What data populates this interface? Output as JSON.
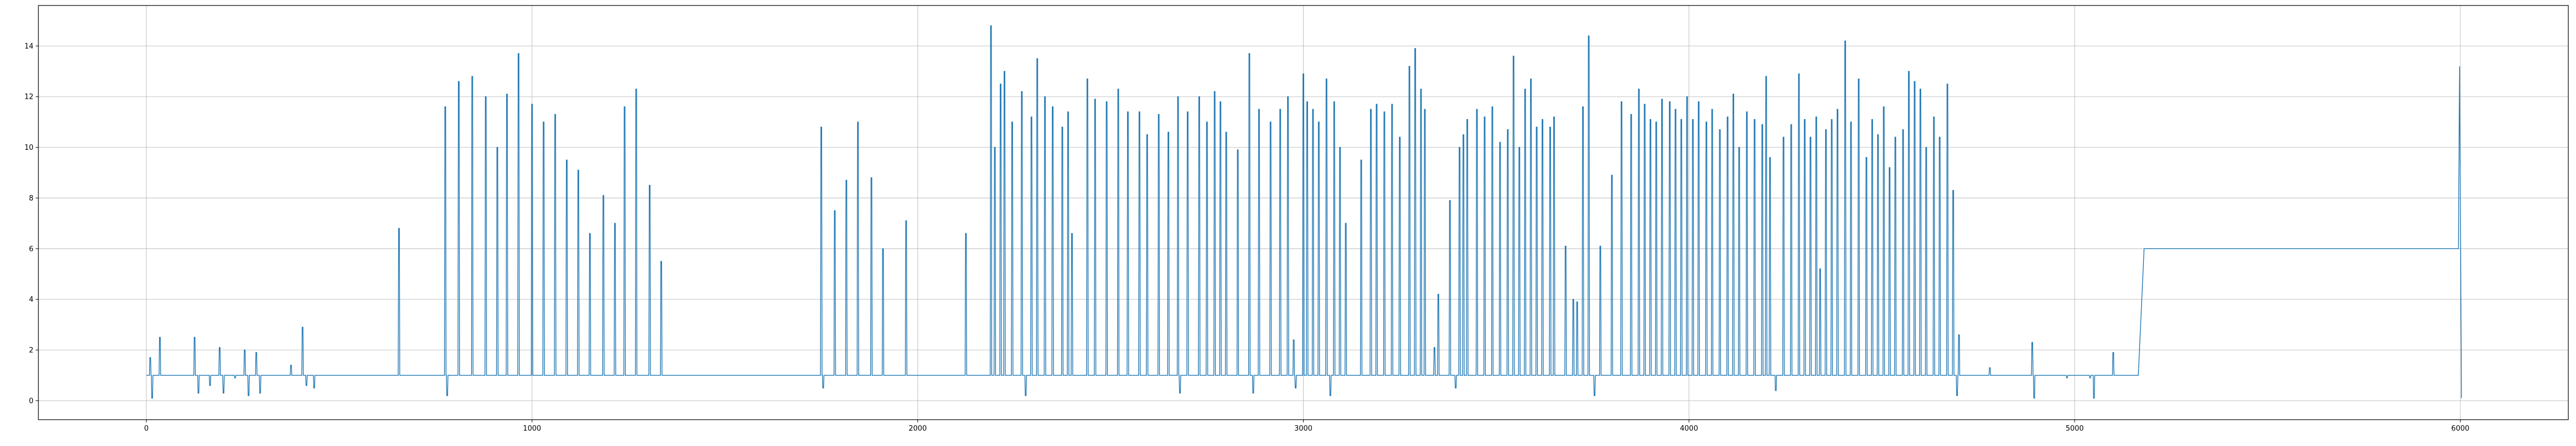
{
  "chart_data": {
    "type": "line",
    "title": "",
    "xlabel": "",
    "ylabel": "",
    "xlim": [
      -280,
      6280
    ],
    "ylim": [
      -0.75,
      15.6
    ],
    "grid": true,
    "line_color": "#1f77b4",
    "x_ticks": [
      0,
      1000,
      2000,
      3000,
      4000,
      5000,
      6000
    ],
    "y_ticks": [
      0,
      2,
      4,
      6,
      8,
      10,
      12,
      14
    ],
    "x_tick_labels": [
      "0",
      "1000",
      "2000",
      "3000",
      "4000",
      "5000",
      "6000"
    ],
    "y_tick_labels": [
      "0",
      "2",
      "4",
      "6",
      "8",
      "10",
      "12",
      "14"
    ],
    "baseline": 1,
    "spikes": [
      [
        10,
        1.7
      ],
      [
        15,
        0.1
      ],
      [
        35,
        2.5
      ],
      [
        125,
        2.5
      ],
      [
        135,
        0.3
      ],
      [
        165,
        0.6
      ],
      [
        190,
        2.1
      ],
      [
        200,
        0.3
      ],
      [
        230,
        0.9
      ],
      [
        255,
        2.0
      ],
      [
        265,
        0.2
      ],
      [
        285,
        1.9
      ],
      [
        295,
        0.3
      ],
      [
        375,
        1.4
      ],
      [
        405,
        2.9
      ],
      [
        415,
        0.6
      ],
      [
        435,
        0.5
      ],
      [
        655,
        6.8
      ],
      [
        775,
        11.6
      ],
      [
        780,
        0.2
      ],
      [
        810,
        12.6
      ],
      [
        845,
        12.8
      ],
      [
        880,
        12.0
      ],
      [
        910,
        10.0
      ],
      [
        935,
        12.1
      ],
      [
        965,
        13.7
      ],
      [
        1000,
        11.7
      ],
      [
        1030,
        11.0
      ],
      [
        1060,
        11.3
      ],
      [
        1090,
        9.5
      ],
      [
        1120,
        9.1
      ],
      [
        1150,
        6.6
      ],
      [
        1185,
        8.1
      ],
      [
        1215,
        7.0
      ],
      [
        1240,
        11.6
      ],
      [
        1270,
        12.3
      ],
      [
        1305,
        8.5
      ],
      [
        1335,
        5.5
      ],
      [
        1750,
        10.8
      ],
      [
        1755,
        0.5
      ],
      [
        1785,
        7.5
      ],
      [
        1815,
        8.7
      ],
      [
        1845,
        11.0
      ],
      [
        1880,
        8.8
      ],
      [
        1910,
        6.0
      ],
      [
        1970,
        7.1
      ],
      [
        2125,
        6.6
      ],
      [
        2190,
        14.8
      ],
      [
        2200,
        10.0
      ],
      [
        2215,
        12.5
      ],
      [
        2225,
        13.0
      ],
      [
        2245,
        11.0
      ],
      [
        2270,
        12.2
      ],
      [
        2280,
        0.2
      ],
      [
        2295,
        11.2
      ],
      [
        2310,
        13.5
      ],
      [
        2330,
        12.0
      ],
      [
        2350,
        11.6
      ],
      [
        2375,
        10.8
      ],
      [
        2390,
        11.4
      ],
      [
        2400,
        6.6
      ],
      [
        2440,
        12.7
      ],
      [
        2460,
        11.9
      ],
      [
        2490,
        11.8
      ],
      [
        2520,
        12.3
      ],
      [
        2545,
        11.4
      ],
      [
        2575,
        11.4
      ],
      [
        2595,
        10.5
      ],
      [
        2625,
        11.3
      ],
      [
        2650,
        10.6
      ],
      [
        2675,
        12.0
      ],
      [
        2680,
        0.3
      ],
      [
        2700,
        11.4
      ],
      [
        2730,
        12.0
      ],
      [
        2750,
        11.0
      ],
      [
        2770,
        12.2
      ],
      [
        2785,
        11.8
      ],
      [
        2800,
        10.6
      ],
      [
        2830,
        9.9
      ],
      [
        2860,
        13.7
      ],
      [
        2870,
        0.3
      ],
      [
        2885,
        11.5
      ],
      [
        2915,
        11.0
      ],
      [
        2940,
        11.5
      ],
      [
        2960,
        12.0
      ],
      [
        2975,
        2.4
      ],
      [
        2980,
        0.5
      ],
      [
        3000,
        12.9
      ],
      [
        3010,
        11.8
      ],
      [
        3025,
        11.5
      ],
      [
        3040,
        11.0
      ],
      [
        3060,
        12.7
      ],
      [
        3070,
        0.2
      ],
      [
        3080,
        11.8
      ],
      [
        3095,
        10.0
      ],
      [
        3110,
        7.0
      ],
      [
        3150,
        9.5
      ],
      [
        3175,
        11.5
      ],
      [
        3190,
        11.7
      ],
      [
        3210,
        11.4
      ],
      [
        3230,
        11.7
      ],
      [
        3250,
        10.4
      ],
      [
        3275,
        13.2
      ],
      [
        3290,
        13.9
      ],
      [
        3305,
        12.3
      ],
      [
        3315,
        11.5
      ],
      [
        3340,
        2.1
      ],
      [
        3350,
        4.2
      ],
      [
        3380,
        7.9
      ],
      [
        3395,
        0.5
      ],
      [
        3405,
        10.0
      ],
      [
        3415,
        10.5
      ],
      [
        3425,
        11.1
      ],
      [
        3450,
        11.5
      ],
      [
        3470,
        11.2
      ],
      [
        3490,
        11.6
      ],
      [
        3510,
        10.2
      ],
      [
        3530,
        10.7
      ],
      [
        3545,
        13.6
      ],
      [
        3560,
        10.0
      ],
      [
        3575,
        12.3
      ],
      [
        3590,
        12.7
      ],
      [
        3605,
        10.8
      ],
      [
        3620,
        11.1
      ],
      [
        3640,
        10.8
      ],
      [
        3650,
        11.2
      ],
      [
        3680,
        6.1
      ],
      [
        3700,
        4.0
      ],
      [
        3710,
        3.9
      ],
      [
        3725,
        11.6
      ],
      [
        3740,
        14.4
      ],
      [
        3755,
        0.2
      ],
      [
        3770,
        6.1
      ],
      [
        3800,
        8.9
      ],
      [
        3825,
        11.8
      ],
      [
        3850,
        11.3
      ],
      [
        3870,
        12.3
      ],
      [
        3885,
        11.7
      ],
      [
        3900,
        11.1
      ],
      [
        3915,
        11.0
      ],
      [
        3930,
        11.9
      ],
      [
        3950,
        11.8
      ],
      [
        3965,
        11.5
      ],
      [
        3980,
        11.1
      ],
      [
        3995,
        12.0
      ],
      [
        4010,
        11.1
      ],
      [
        4025,
        11.8
      ],
      [
        4045,
        11.0
      ],
      [
        4060,
        11.5
      ],
      [
        4080,
        10.7
      ],
      [
        4100,
        11.2
      ],
      [
        4115,
        12.1
      ],
      [
        4130,
        10.0
      ],
      [
        4150,
        11.4
      ],
      [
        4170,
        11.1
      ],
      [
        4190,
        10.9
      ],
      [
        4200,
        12.8
      ],
      [
        4210,
        9.6
      ],
      [
        4225,
        0.4
      ],
      [
        4245,
        10.4
      ],
      [
        4265,
        10.9
      ],
      [
        4285,
        12.9
      ],
      [
        4300,
        11.1
      ],
      [
        4315,
        10.4
      ],
      [
        4330,
        11.2
      ],
      [
        4340,
        5.2
      ],
      [
        4355,
        10.7
      ],
      [
        4370,
        11.1
      ],
      [
        4385,
        11.5
      ],
      [
        4405,
        14.2
      ],
      [
        4420,
        11.0
      ],
      [
        4440,
        12.7
      ],
      [
        4460,
        9.6
      ],
      [
        4475,
        11.1
      ],
      [
        4490,
        10.5
      ],
      [
        4505,
        11.6
      ],
      [
        4520,
        9.2
      ],
      [
        4535,
        10.4
      ],
      [
        4555,
        10.7
      ],
      [
        4570,
        13.0
      ],
      [
        4585,
        12.6
      ],
      [
        4600,
        12.3
      ],
      [
        4615,
        10.0
      ],
      [
        4635,
        11.2
      ],
      [
        4650,
        10.4
      ],
      [
        4670,
        12.5
      ],
      [
        4685,
        8.3
      ],
      [
        4695,
        0.2
      ],
      [
        4700,
        2.6
      ],
      [
        4780,
        1.3
      ],
      [
        4890,
        2.3
      ],
      [
        4895,
        0.1
      ],
      [
        4980,
        0.9
      ],
      [
        5040,
        0.9
      ],
      [
        5050,
        0.1
      ],
      [
        5100,
        1.9
      ]
    ],
    "plateau": {
      "start": 5165,
      "end": 5180,
      "level": 6,
      "until": 5995
    },
    "end_spike": [
      [
        5998,
        13.2
      ],
      [
        6003,
        0.1
      ]
    ]
  }
}
